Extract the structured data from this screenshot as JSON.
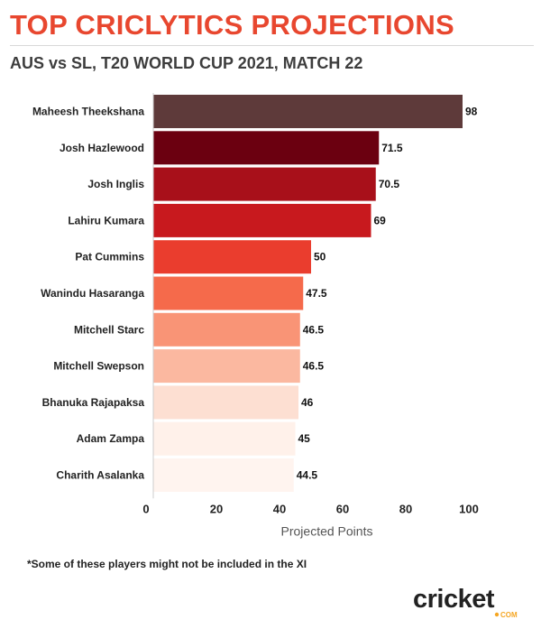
{
  "header": {
    "title": "TOP CRICLYTICS PROJECTIONS",
    "subtitle": "AUS vs SL, T20 WORLD CUP 2021, MATCH 22"
  },
  "footnote": "*Some of these players might not be included in the XI",
  "logo": {
    "text": "cricket",
    "sub": ".COM"
  },
  "colors": {
    "title": "#e8472f",
    "bars": [
      "#5e3a3a",
      "#6b0010",
      "#a8101a",
      "#c8191e",
      "#ea3d2e",
      "#f56a4b",
      "#f99476",
      "#fbb8a0",
      "#fddfd2",
      "#fff1ea",
      "#fff4ef"
    ]
  },
  "chart_data": {
    "type": "bar",
    "orientation": "horizontal",
    "categories": [
      "Maheesh Theekshana",
      "Josh Hazlewood",
      "Josh Inglis",
      "Lahiru Kumara",
      "Pat Cummins",
      "Wanindu Hasaranga",
      "Mitchell Starc",
      "Mitchell Swepson",
      "Bhanuka Rajapaksa",
      "Adam Zampa",
      "Charith Asalanka"
    ],
    "values": [
      98,
      71.5,
      70.5,
      69,
      50,
      47.5,
      46.5,
      46.5,
      46,
      45,
      44.5
    ],
    "value_labels": [
      "98",
      "71.5",
      "70.5",
      "69",
      "50",
      "47.5",
      "46.5",
      "46.5",
      "46",
      "45",
      "44.5"
    ],
    "xlabel": "Projected Points",
    "ylabel": "",
    "xlim": [
      0,
      108
    ],
    "xticks": [
      0,
      20,
      40,
      60,
      80,
      100
    ],
    "grid": false,
    "legend": "none"
  }
}
